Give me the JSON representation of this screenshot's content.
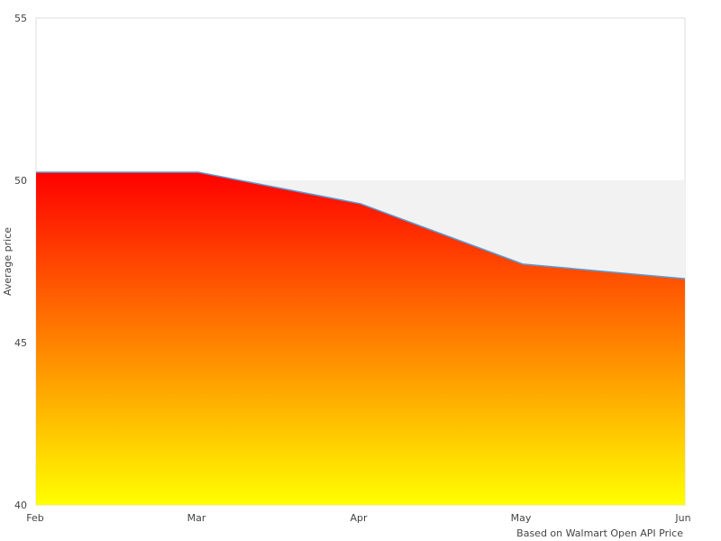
{
  "chart_data": {
    "type": "area",
    "title": "",
    "xlabel": "",
    "ylabel": "Average price",
    "credit": "Based on Walmart Open API Price",
    "categories": [
      "Feb",
      "Mar",
      "Apr",
      "May",
      "Jun"
    ],
    "values": [
      50.25,
      50.25,
      49.28,
      47.42,
      46.97
    ],
    "ylim": [
      40,
      55
    ],
    "yticks": [
      "40",
      "45",
      "50",
      "55"
    ],
    "grid": false,
    "plot_band": {
      "from": 45,
      "to": 50,
      "color": "#f2f2f2"
    },
    "line_color": "#5b9bd5",
    "fill_gradient": {
      "top": "#ff0000",
      "bottom": "#ffff00"
    }
  }
}
